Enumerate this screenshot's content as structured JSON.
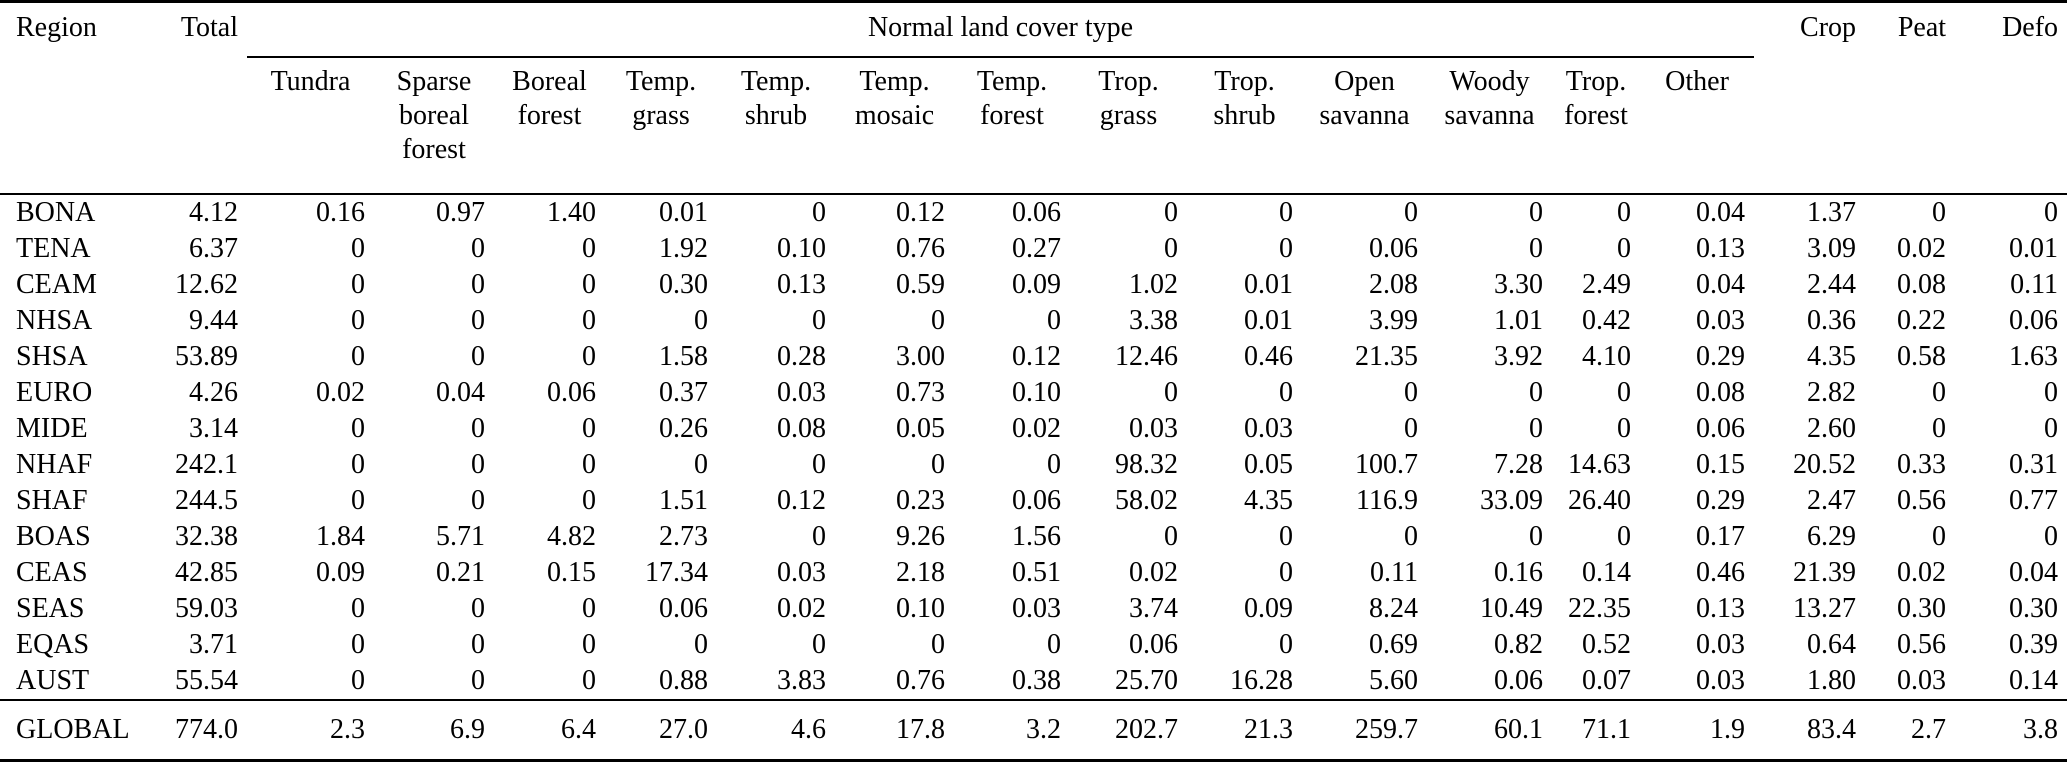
{
  "table": {
    "region_header": "Region",
    "total_header": "Total",
    "group_header": "Normal land cover type",
    "crop_header": "Crop",
    "peat_header": "Peat",
    "defo_header": "Defo",
    "subheaders": [
      {
        "id": "tundra",
        "label": "Tundra",
        "lines": [
          "Tundra"
        ]
      },
      {
        "id": "sparse-boreal-forest",
        "label": "Sparse boreal forest",
        "lines": [
          "Sparse",
          "boreal",
          "forest"
        ]
      },
      {
        "id": "boreal-forest",
        "label": "Boreal forest",
        "lines": [
          "Boreal",
          "forest"
        ]
      },
      {
        "id": "temp-grass",
        "label": "Temp. grass",
        "lines": [
          "Temp.",
          "grass"
        ]
      },
      {
        "id": "temp-shrub",
        "label": "Temp. shrub",
        "lines": [
          "Temp.",
          "shrub"
        ]
      },
      {
        "id": "temp-mosaic",
        "label": "Temp. mosaic",
        "lines": [
          "Temp.",
          "mosaic"
        ]
      },
      {
        "id": "temp-forest",
        "label": "Temp. forest",
        "lines": [
          "Temp.",
          "forest"
        ]
      },
      {
        "id": "trop-grass",
        "label": "Trop. grass",
        "lines": [
          "Trop.",
          "grass"
        ]
      },
      {
        "id": "trop-shrub",
        "label": "Trop. shrub",
        "lines": [
          "Trop.",
          "shrub"
        ]
      },
      {
        "id": "open-savanna",
        "label": "Open savanna",
        "lines": [
          "Open",
          "savanna"
        ]
      },
      {
        "id": "woody-savanna",
        "label": "Woody savanna",
        "lines": [
          "Woody",
          "savanna"
        ]
      },
      {
        "id": "trop-forest",
        "label": "Trop. forest",
        "lines": [
          "Trop.",
          "forest"
        ]
      },
      {
        "id": "other",
        "label": "Other",
        "lines": [
          "Other"
        ]
      }
    ],
    "rows": [
      {
        "region": "BONA",
        "values": [
          "4.12",
          "0.16",
          "0.97",
          "1.40",
          "0.01",
          "0",
          "0.12",
          "0.06",
          "0",
          "0",
          "0",
          "0",
          "0",
          "0.04",
          "1.37",
          "0",
          "0"
        ]
      },
      {
        "region": "TENA",
        "values": [
          "6.37",
          "0",
          "0",
          "0",
          "1.92",
          "0.10",
          "0.76",
          "0.27",
          "0",
          "0",
          "0.06",
          "0",
          "0",
          "0.13",
          "3.09",
          "0.02",
          "0.01"
        ]
      },
      {
        "region": "CEAM",
        "values": [
          "12.62",
          "0",
          "0",
          "0",
          "0.30",
          "0.13",
          "0.59",
          "0.09",
          "1.02",
          "0.01",
          "2.08",
          "3.30",
          "2.49",
          "0.04",
          "2.44",
          "0.08",
          "0.11"
        ]
      },
      {
        "region": "NHSA",
        "values": [
          "9.44",
          "0",
          "0",
          "0",
          "0",
          "0",
          "0",
          "0",
          "3.38",
          "0.01",
          "3.99",
          "1.01",
          "0.42",
          "0.03",
          "0.36",
          "0.22",
          "0.06"
        ]
      },
      {
        "region": "SHSA",
        "values": [
          "53.89",
          "0",
          "0",
          "0",
          "1.58",
          "0.28",
          "3.00",
          "0.12",
          "12.46",
          "0.46",
          "21.35",
          "3.92",
          "4.10",
          "0.29",
          "4.35",
          "0.58",
          "1.63"
        ]
      },
      {
        "region": "EURO",
        "values": [
          "4.26",
          "0.02",
          "0.04",
          "0.06",
          "0.37",
          "0.03",
          "0.73",
          "0.10",
          "0",
          "0",
          "0",
          "0",
          "0",
          "0.08",
          "2.82",
          "0",
          "0"
        ]
      },
      {
        "region": "MIDE",
        "values": [
          "3.14",
          "0",
          "0",
          "0",
          "0.26",
          "0.08",
          "0.05",
          "0.02",
          "0.03",
          "0.03",
          "0",
          "0",
          "0",
          "0.06",
          "2.60",
          "0",
          "0"
        ]
      },
      {
        "region": "NHAF",
        "values": [
          "242.1",
          "0",
          "0",
          "0",
          "0",
          "0",
          "0",
          "0",
          "98.32",
          "0.05",
          "100.7",
          "7.28",
          "14.63",
          "0.15",
          "20.52",
          "0.33",
          "0.31"
        ]
      },
      {
        "region": "SHAF",
        "values": [
          "244.5",
          "0",
          "0",
          "0",
          "1.51",
          "0.12",
          "0.23",
          "0.06",
          "58.02",
          "4.35",
          "116.9",
          "33.09",
          "26.40",
          "0.29",
          "2.47",
          "0.56",
          "0.77"
        ]
      },
      {
        "region": "BOAS",
        "values": [
          "32.38",
          "1.84",
          "5.71",
          "4.82",
          "2.73",
          "0",
          "9.26",
          "1.56",
          "0",
          "0",
          "0",
          "0",
          "0",
          "0.17",
          "6.29",
          "0",
          "0"
        ]
      },
      {
        "region": "CEAS",
        "values": [
          "42.85",
          "0.09",
          "0.21",
          "0.15",
          "17.34",
          "0.03",
          "2.18",
          "0.51",
          "0.02",
          "0",
          "0.11",
          "0.16",
          "0.14",
          "0.46",
          "21.39",
          "0.02",
          "0.04"
        ]
      },
      {
        "region": "SEAS",
        "values": [
          "59.03",
          "0",
          "0",
          "0",
          "0.06",
          "0.02",
          "0.10",
          "0.03",
          "3.74",
          "0.09",
          "8.24",
          "10.49",
          "22.35",
          "0.13",
          "13.27",
          "0.30",
          "0.30"
        ]
      },
      {
        "region": "EQAS",
        "values": [
          "3.71",
          "0",
          "0",
          "0",
          "0",
          "0",
          "0",
          "0",
          "0.06",
          "0",
          "0.69",
          "0.82",
          "0.52",
          "0.03",
          "0.64",
          "0.56",
          "0.39"
        ]
      },
      {
        "region": "AUST",
        "values": [
          "55.54",
          "0",
          "0",
          "0",
          "0.88",
          "3.83",
          "0.76",
          "0.38",
          "25.70",
          "16.28",
          "5.60",
          "0.06",
          "0.07",
          "0.03",
          "1.80",
          "0.03",
          "0.14"
        ]
      }
    ],
    "global": {
      "region": "GLOBAL",
      "values": [
        "774.0",
        "2.3",
        "6.9",
        "6.4",
        "27.0",
        "4.6",
        "17.8",
        "3.2",
        "202.7",
        "21.3",
        "259.7",
        "60.1",
        "71.1",
        "1.9",
        "83.4",
        "2.7",
        "3.8"
      ]
    }
  }
}
